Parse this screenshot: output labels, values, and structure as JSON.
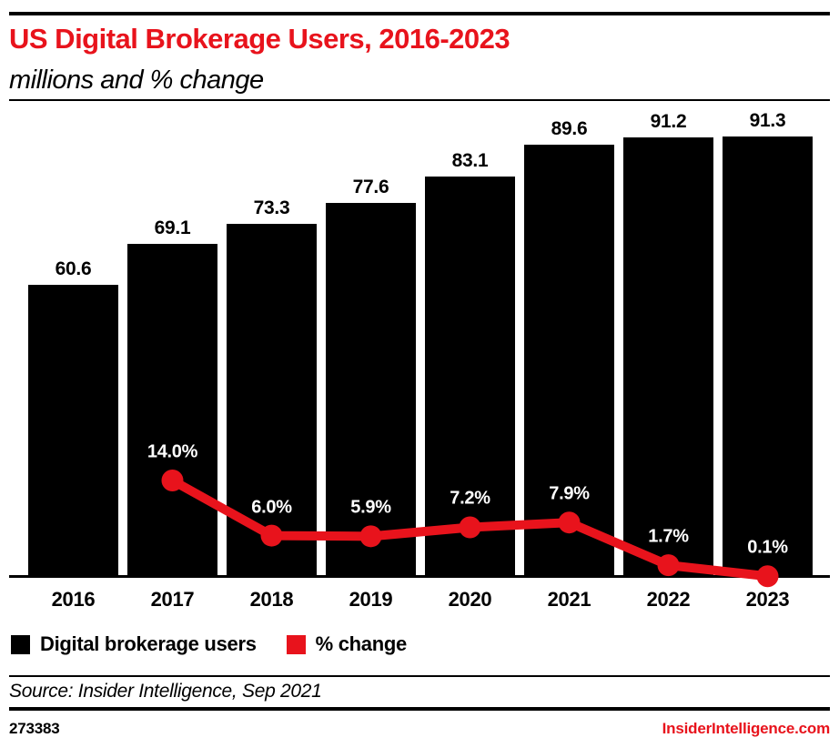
{
  "header": {
    "title": "US Digital Brokerage Users, 2016-2023",
    "subtitle": "millions and % change"
  },
  "colors": {
    "accent_red": "#e8131c",
    "bar_black": "#000000",
    "pct_label_white": "#ffffff"
  },
  "chart_data": {
    "type": "bar",
    "title": "US Digital Brokerage Users, 2016-2023",
    "subtitle": "millions and % change",
    "categories": [
      "2016",
      "2017",
      "2018",
      "2019",
      "2020",
      "2021",
      "2022",
      "2023"
    ],
    "series": [
      {
        "name": "Digital brokerage users",
        "render": "bar",
        "unit": "millions",
        "color": "#000000",
        "values": [
          60.6,
          69.1,
          73.3,
          77.6,
          83.1,
          89.6,
          91.2,
          91.3
        ],
        "labels": [
          "60.6",
          "69.1",
          "73.3",
          "77.6",
          "83.1",
          "89.6",
          "91.2",
          "91.3"
        ]
      },
      {
        "name": "% change",
        "render": "line",
        "unit": "%",
        "color": "#e8131c",
        "values": [
          null,
          14.0,
          6.0,
          5.9,
          7.2,
          7.9,
          1.7,
          0.1
        ],
        "labels": [
          null,
          "14.0%",
          "6.0%",
          "5.9%",
          "7.2%",
          "7.9%",
          "1.7%",
          "0.1%"
        ]
      }
    ],
    "xlabel": "",
    "ylabel": "",
    "grid": false,
    "y_axis_visible": false,
    "value_labels_shown": true,
    "legend_position": "bottom-left"
  },
  "legend": {
    "items": [
      {
        "label": "Digital brokerage users",
        "color": "#000000"
      },
      {
        "label": "% change",
        "color": "#e8131c"
      }
    ]
  },
  "footer": {
    "source": "Source: Insider Intelligence, Sep 2021",
    "chart_id": "273383",
    "site": "InsiderIntelligence.com"
  }
}
